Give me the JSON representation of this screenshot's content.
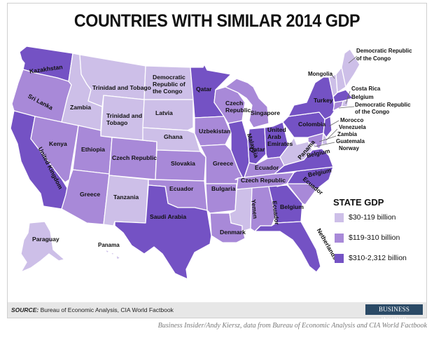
{
  "title": "COUNTRIES WITH SIMILAR 2014 GDP",
  "colors": {
    "tier_low": "#cdbfe8",
    "tier_mid": "#a889d8",
    "tier_high": "#7452c4",
    "footer_bg": "#e7e7e7",
    "brand_bg": "#2b4a66"
  },
  "legend": {
    "title": "STATE GDP",
    "items": [
      {
        "tier": "low",
        "label": "$30-119 billion"
      },
      {
        "tier": "mid",
        "label": "$119-310 billion"
      },
      {
        "tier": "high",
        "label": "$310-2,312 billion"
      }
    ]
  },
  "states": [
    {
      "state": "WA",
      "country": "Kazakhstan",
      "tier": "high"
    },
    {
      "state": "OR",
      "country": "Sri Lanka",
      "tier": "mid"
    },
    {
      "state": "CA",
      "country": "United Kingdom",
      "tier": "high"
    },
    {
      "state": "NV",
      "country": "Kenya",
      "tier": "mid"
    },
    {
      "state": "ID",
      "country": "Zambia",
      "tier": "low"
    },
    {
      "state": "MT",
      "country": "Trinidad and Tobago",
      "tier": "low"
    },
    {
      "state": "WY",
      "country": "Trinidad and Tobago",
      "tier": "low"
    },
    {
      "state": "UT",
      "country": "Ethiopia",
      "tier": "mid"
    },
    {
      "state": "AZ",
      "country": "Greece",
      "tier": "mid"
    },
    {
      "state": "CO",
      "country": "Czech Republic",
      "tier": "mid"
    },
    {
      "state": "NM",
      "country": "Tanzania",
      "tier": "low"
    },
    {
      "state": "ND",
      "country": "Democratic Republic of the Congo",
      "tier": "low"
    },
    {
      "state": "SD",
      "country": "Latvia",
      "tier": "low"
    },
    {
      "state": "NE",
      "country": "Ghana",
      "tier": "low"
    },
    {
      "state": "KS",
      "country": "Slovakia",
      "tier": "mid"
    },
    {
      "state": "OK",
      "country": "Ecuador",
      "tier": "mid"
    },
    {
      "state": "TX",
      "country": "Saudi Arabia",
      "tier": "high"
    },
    {
      "state": "MN",
      "country": "Qatar",
      "tier": "high"
    },
    {
      "state": "IA",
      "country": "Uzbekistan",
      "tier": "mid"
    },
    {
      "state": "MO",
      "country": "Greece",
      "tier": "mid"
    },
    {
      "state": "AR",
      "country": "Bulgaria",
      "tier": "mid"
    },
    {
      "state": "LA",
      "country": "Denmark",
      "tier": "mid"
    },
    {
      "state": "WI",
      "country": "Czech Republic",
      "tier": "mid"
    },
    {
      "state": "IL",
      "country": "Malaysia",
      "tier": "high"
    },
    {
      "state": "MI",
      "country": "Singapore",
      "tier": "mid"
    },
    {
      "state": "IN",
      "country": "Qatar",
      "tier": "high"
    },
    {
      "state": "OH",
      "country": "United Arab Emirates",
      "tier": "high"
    },
    {
      "state": "KY",
      "country": "Ecuador",
      "tier": "mid"
    },
    {
      "state": "TN",
      "country": "Czech Republic",
      "tier": "mid"
    },
    {
      "state": "MS",
      "country": "Yemen",
      "tier": "low"
    },
    {
      "state": "AL",
      "country": "Ecuador",
      "tier": "mid"
    },
    {
      "state": "GA",
      "country": "Belgium",
      "tier": "high"
    },
    {
      "state": "FL",
      "country": "Netherlands",
      "tier": "high"
    },
    {
      "state": "SC",
      "country": "Ecuador",
      "tier": "mid"
    },
    {
      "state": "NC",
      "country": "Belgium",
      "tier": "high"
    },
    {
      "state": "VA",
      "country": "Belgium",
      "tier": "high"
    },
    {
      "state": "WV",
      "country": "Panama",
      "tier": "low"
    },
    {
      "state": "PA",
      "country": "Colombia",
      "tier": "high"
    },
    {
      "state": "NY",
      "country": "Turkey",
      "tier": "high"
    },
    {
      "state": "VT",
      "country": "Democratic Republic of the Congo",
      "tier": "low"
    },
    {
      "state": "NH",
      "country": "Mongolia",
      "tier": "low"
    },
    {
      "state": "ME",
      "country": "Democratic Republic of the Congo",
      "tier": "low"
    },
    {
      "state": "MA",
      "country": "Belgium",
      "tier": "high"
    },
    {
      "state": "RI",
      "country": "Costa Rica",
      "tier": "low"
    },
    {
      "state": "CT",
      "country": "Democratic Republic of the Congo",
      "tier": "mid"
    },
    {
      "state": "NJ",
      "country": "Morocco",
      "tier": "high"
    },
    {
      "state": "DE",
      "country": "Venezuela",
      "tier": "low"
    },
    {
      "state": "MD",
      "country": "Zambia",
      "tier": "mid"
    },
    {
      "state": "DC",
      "country": "Guatemala",
      "tier": "low"
    },
    {
      "state": "DC2",
      "country": "Norway",
      "tier": "low"
    },
    {
      "state": "AK",
      "country": "Paraguay",
      "tier": "low"
    },
    {
      "state": "HI",
      "country": "Panama",
      "tier": "low"
    }
  ],
  "labels": {
    "wa": "Kazakhstan",
    "or": "Sri Lanka",
    "ca": "United Kingdom",
    "nv": "Kenya",
    "id": "Zambia",
    "mt": "Trinidad and Tobago",
    "wy_1": "Trinidad and",
    "wy_2": "Tobago",
    "ut": "Ethiopia",
    "az": "Greece",
    "co": "Czech Republic",
    "nm": "Tanzania",
    "nd_1": "Democratic",
    "nd_2": "Republic of",
    "nd_3": "the Congo",
    "sd": "Latvia",
    "ne": "Ghana",
    "ks": "Slovakia",
    "ok": "Ecuador",
    "tx": "Saudi Arabia",
    "mn": "Qatar",
    "ia": "Uzbekistan",
    "mo": "Greece",
    "ar": "Bulgaria",
    "la": "Denmark",
    "wi_1": "Czech",
    "wi_2": "Republic",
    "il": "Malaysia",
    "mi": "Singapore",
    "in": "Qatar",
    "oh_1": "United",
    "oh_2": "Arab",
    "oh_3": "Emirates",
    "ky": "Ecuador",
    "tn": "Czech Republic",
    "ms": "Yemen",
    "al": "Ecuador",
    "ga": "Belgium",
    "fl": "Netherlands",
    "sc": "Ecuador",
    "nc": "Belgium",
    "va": "Belgium",
    "wv": "Panama",
    "pa": "Colombia",
    "ny": "Turkey",
    "me_1": "Democratic Republic",
    "me_2": "of the Congo",
    "nh": "Mongolia",
    "ri": "Costa Rica",
    "ma": "Belgium",
    "ct_1": "Democratic Republic",
    "ct_2": "of the Congo",
    "nj": "Morocco",
    "de": "Venezuela",
    "md": "Zambia",
    "dc": "Guatemala",
    "dc2": "Norway",
    "ak": "Paraguay",
    "hi": "Panama"
  },
  "source_label": "SOURCE:",
  "source_text": "Bureau of Economic Analysis, CIA World Factbook",
  "brand": "BUSINESS INSIDER",
  "credit": "Business Insider/Andy Kiersz, data from Bureau of Economic Analysis and CIA World Factbook"
}
